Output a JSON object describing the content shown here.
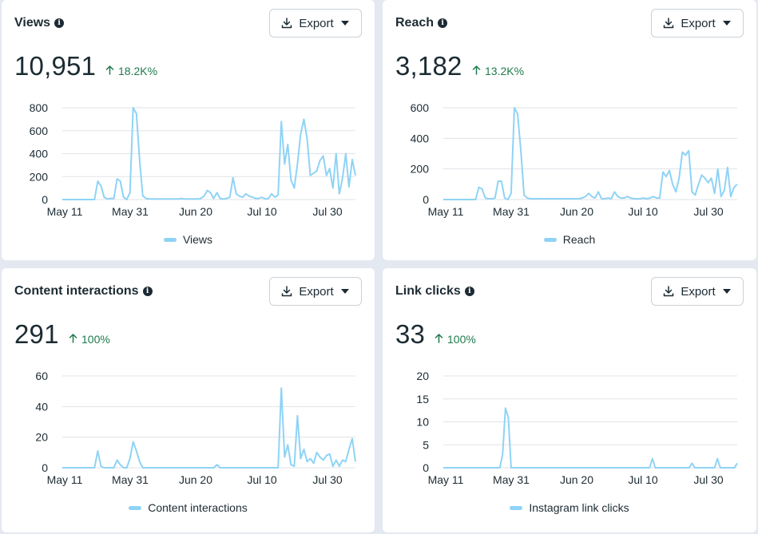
{
  "colors": {
    "line": "#8fd3f5",
    "positive": "#1f7a4d",
    "grid": "#dfe3e8",
    "text": "#1c2b33"
  },
  "export_label": "Export",
  "cards": [
    {
      "title": "Views",
      "value": "10,951",
      "delta": "18.2K%",
      "legend": "Views"
    },
    {
      "title": "Reach",
      "value": "3,182",
      "delta": "13.2K%",
      "legend": "Reach"
    },
    {
      "title": "Content interactions",
      "value": "291",
      "delta": "100%",
      "legend": "Content interactions"
    },
    {
      "title": "Link clicks",
      "value": "33",
      "delta": "100%",
      "legend": "Instagram link clicks"
    }
  ],
  "chart_data": [
    {
      "type": "line",
      "x_ticks": [
        "May 11",
        "May 31",
        "Jun 20",
        "Jul 10",
        "Jul 30"
      ],
      "yticks": [
        0,
        200,
        400,
        600,
        800
      ],
      "ylim": [
        0,
        800
      ],
      "series": [
        {
          "name": "Views",
          "values": [
            0,
            0,
            0,
            0,
            0,
            0,
            0,
            0,
            0,
            0,
            0,
            160,
            120,
            20,
            5,
            10,
            10,
            180,
            160,
            20,
            0,
            60,
            800,
            750,
            340,
            30,
            10,
            5,
            5,
            5,
            5,
            5,
            5,
            5,
            5,
            5,
            5,
            10,
            5,
            5,
            5,
            5,
            5,
            10,
            30,
            80,
            60,
            10,
            60,
            10,
            5,
            10,
            20,
            190,
            50,
            30,
            20,
            50,
            30,
            20,
            10,
            10,
            20,
            5,
            10,
            50,
            20,
            40,
            680,
            310,
            480,
            170,
            100,
            310,
            570,
            700,
            530,
            210,
            230,
            250,
            340,
            380,
            210,
            270,
            100,
            400,
            50,
            190,
            400,
            110,
            350,
            210
          ]
        }
      ],
      "grid": true,
      "legend_position": "bottom"
    },
    {
      "type": "line",
      "x_ticks": [
        "May 11",
        "May 31",
        "Jun 20",
        "Jul 10",
        "Jul 30"
      ],
      "yticks": [
        0,
        200,
        400,
        600
      ],
      "ylim": [
        0,
        600
      ],
      "series": [
        {
          "name": "Reach",
          "values": [
            0,
            0,
            0,
            0,
            0,
            0,
            0,
            0,
            0,
            0,
            0,
            80,
            70,
            10,
            5,
            5,
            10,
            120,
            120,
            10,
            0,
            40,
            600,
            560,
            320,
            30,
            10,
            5,
            5,
            5,
            5,
            5,
            5,
            5,
            5,
            5,
            5,
            5,
            5,
            5,
            5,
            5,
            5,
            10,
            20,
            40,
            20,
            10,
            50,
            5,
            5,
            10,
            5,
            50,
            20,
            10,
            10,
            20,
            10,
            5,
            5,
            5,
            10,
            5,
            10,
            20,
            10,
            10,
            180,
            150,
            190,
            100,
            50,
            140,
            310,
            290,
            320,
            50,
            30,
            100,
            160,
            140,
            110,
            140,
            40,
            200,
            20,
            60,
            210,
            20,
            80,
            100
          ]
        }
      ],
      "grid": true,
      "legend_position": "bottom"
    },
    {
      "type": "line",
      "x_ticks": [
        "May 11",
        "May 31",
        "Jun 20",
        "Jul 10",
        "Jul 30"
      ],
      "yticks": [
        0,
        20,
        40,
        60
      ],
      "ylim": [
        0,
        60
      ],
      "series": [
        {
          "name": "Content interactions",
          "values": [
            0,
            0,
            0,
            0,
            0,
            0,
            0,
            0,
            0,
            0,
            0,
            11,
            1,
            0,
            0,
            0,
            0,
            5,
            2,
            0,
            0,
            6,
            17,
            11,
            4,
            0,
            0,
            0,
            0,
            0,
            0,
            0,
            0,
            0,
            0,
            0,
            0,
            0,
            0,
            0,
            0,
            0,
            0,
            0,
            0,
            0,
            0,
            0,
            2,
            0,
            0,
            0,
            0,
            0,
            0,
            0,
            0,
            0,
            0,
            0,
            0,
            0,
            0,
            0,
            0,
            0,
            0,
            0,
            52,
            7,
            15,
            2,
            1,
            34,
            6,
            12,
            4,
            6,
            3,
            10,
            7,
            5,
            8,
            9,
            1,
            5,
            1,
            5,
            4,
            12,
            19,
            4
          ]
        }
      ],
      "grid": true,
      "legend_position": "bottom"
    },
    {
      "type": "line",
      "x_ticks": [
        "May 11",
        "May 31",
        "Jun 20",
        "Jul 10",
        "Jul 30"
      ],
      "yticks": [
        0,
        5,
        10,
        15,
        20
      ],
      "ylim": [
        0,
        20
      ],
      "series": [
        {
          "name": "Instagram link clicks",
          "values": [
            0,
            0,
            0,
            0,
            0,
            0,
            0,
            0,
            0,
            0,
            0,
            0,
            0,
            0,
            0,
            0,
            0,
            0,
            0,
            0,
            0,
            3,
            13,
            11,
            0,
            0,
            0,
            0,
            0,
            0,
            0,
            0,
            0,
            0,
            0,
            0,
            0,
            0,
            0,
            0,
            0,
            0,
            0,
            0,
            0,
            0,
            0,
            0,
            0,
            0,
            0,
            0,
            0,
            0,
            0,
            0,
            0,
            0,
            0,
            0,
            0,
            0,
            0,
            0,
            0,
            0,
            0,
            0,
            0,
            0,
            0,
            0,
            0,
            0,
            2,
            0,
            0,
            0,
            0,
            0,
            0,
            0,
            0,
            0,
            0,
            0,
            0,
            0,
            1,
            0,
            0,
            0,
            0,
            0,
            0,
            0,
            0,
            2,
            0,
            0,
            0,
            0,
            0,
            0,
            1
          ]
        }
      ],
      "grid": true,
      "legend_position": "bottom"
    }
  ]
}
